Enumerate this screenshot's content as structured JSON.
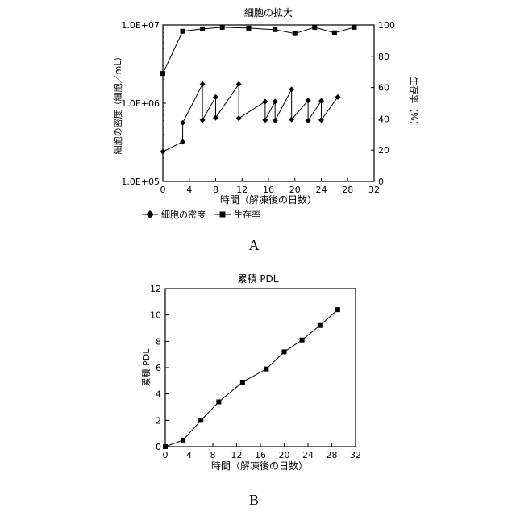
{
  "chart_data": [
    {
      "type": "line",
      "title": "細胞の拡大",
      "xlabel": "時間（解凍後の日数）",
      "ylabel_left": "細胞の密度（細胞／mL）",
      "ylabel_right": "生存率（%）",
      "panel_label": "A",
      "xlim": [
        0,
        32
      ],
      "x_ticks": [
        "0",
        "4",
        "8",
        "12",
        "16",
        "20",
        "24",
        "28",
        "32"
      ],
      "y_left_scale": "log",
      "y_left_ticks": [
        "1.0E+05",
        "1.0E+06",
        "1.0E+07"
      ],
      "y_right_lim": [
        0,
        100
      ],
      "y_right_ticks": [
        "0",
        "20",
        "40",
        "60",
        "80",
        "100"
      ],
      "grid": false,
      "legend_position": "bottom",
      "series": [
        {
          "name": "細胞の密度",
          "axis": "left",
          "marker": "diamond",
          "x": [
            0,
            3,
            3,
            6,
            6,
            8,
            8,
            11.5,
            11.5,
            15.5,
            15.5,
            17,
            17,
            19.5,
            19.5,
            22,
            22,
            24,
            24,
            26.5
          ],
          "y": [
            240000,
            320000,
            560000,
            1750000,
            610000,
            1200000,
            650000,
            1750000,
            640000,
            1050000,
            610000,
            1050000,
            600000,
            1500000,
            620000,
            1080000,
            600000,
            1070000,
            610000,
            1200000
          ]
        },
        {
          "name": "生存率",
          "axis": "right",
          "marker": "square",
          "x": [
            0,
            3,
            6,
            9,
            13,
            17,
            20,
            23,
            26,
            29
          ],
          "y": [
            69,
            96,
            97.5,
            98.5,
            98,
            97,
            94.5,
            98.5,
            95,
            98.5
          ]
        }
      ]
    },
    {
      "type": "line",
      "title": "累積 PDL",
      "xlabel": "時間（解凍後の日数）",
      "ylabel": "累積 PDL",
      "panel_label": "B",
      "xlim": [
        0,
        32
      ],
      "ylim": [
        0,
        12
      ],
      "x_ticks": [
        "0",
        "4",
        "8",
        "12",
        "16",
        "20",
        "24",
        "28",
        "32"
      ],
      "y_ticks": [
        "0",
        "2",
        "4",
        "6",
        "8",
        "10",
        "12"
      ],
      "grid": false,
      "series": [
        {
          "name": "累積 PDL",
          "marker": "square",
          "x": [
            0,
            3,
            6,
            9,
            13,
            17,
            20,
            23,
            26,
            29
          ],
          "y": [
            0,
            0.5,
            2.0,
            3.4,
            4.9,
            5.9,
            7.2,
            8.1,
            9.2,
            10.4
          ]
        }
      ]
    }
  ]
}
